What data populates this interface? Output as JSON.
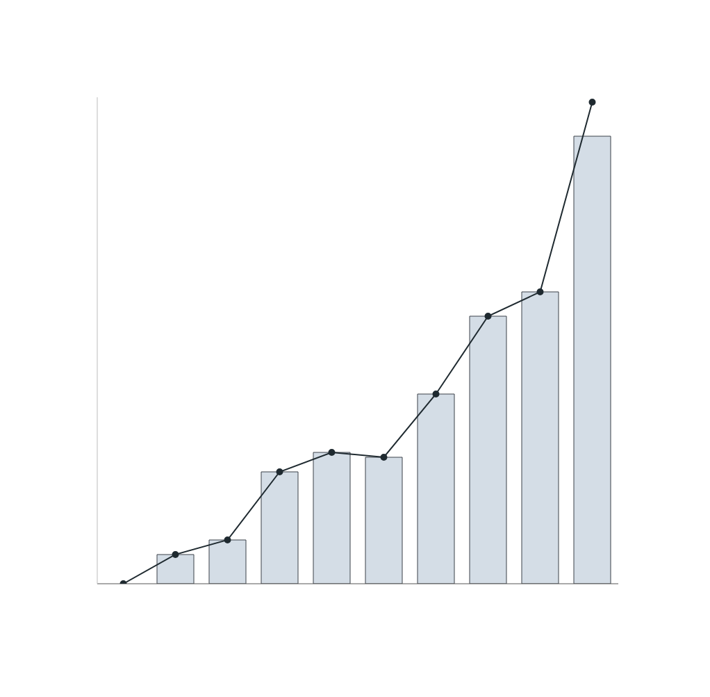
{
  "chart_data": {
    "type": "bar",
    "categories": [
      null,
      null,
      null,
      null,
      null,
      null,
      null,
      null,
      null,
      null
    ],
    "series": [
      {
        "type": "bar",
        "color": "#9fb3c8",
        "values": [
          null,
          6,
          9,
          23,
          27,
          26,
          39,
          55,
          60,
          92
        ]
      },
      {
        "type": "line",
        "color": "#1f2a30",
        "marker": "circle",
        "values": [
          0,
          6,
          9,
          23,
          27,
          26,
          39,
          55,
          60,
          99
        ]
      }
    ],
    "ylim": [
      0,
      100
    ],
    "grid": false,
    "tick_labels": false
  }
}
